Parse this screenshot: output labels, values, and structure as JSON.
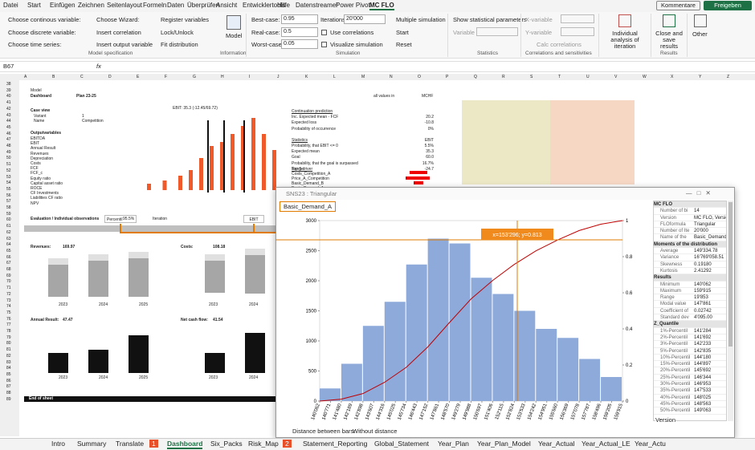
{
  "menu": {
    "tabs": [
      "Datei",
      "Start",
      "Einfügen",
      "Zeichnen",
      "Seitenlayout",
      "Formeln",
      "Daten",
      "Überprüfen",
      "Ansicht",
      "Entwicklertools",
      "Hilfe",
      "Datenstreamer",
      "Power Pivot",
      "MC FLO"
    ],
    "comments": "Kommentare",
    "share": "Freigeben"
  },
  "ribbon": {
    "model_spec": {
      "items": [
        "Choose continous variable:",
        "Choose discrete variable:",
        "Choose time series:",
        "Choose Wizard:",
        "Insert correlation",
        "Insert output variable",
        "Register variables",
        "Lock/Unlock",
        "Fit distribution"
      ],
      "label": "Model specification"
    },
    "information": {
      "button": "Model",
      "label": "Information"
    },
    "simulation": {
      "best_label": "Best-case:",
      "best": "0.95",
      "real_label": "Real-case:",
      "real": "0.5",
      "worst_label": "Worst-case:",
      "worst": "0.05",
      "iterations_label": "Iterations:",
      "iterations": "20'000",
      "use_correlations": "Use correlations",
      "visualize": "Visualize simulation",
      "multiple": "Multiple simulation",
      "start": "Start",
      "reset": "Reset",
      "label": "Simulation"
    },
    "statistics": {
      "show": "Show statistical parameters",
      "variable": "Variable",
      "label": "Statistics"
    },
    "correlations": {
      "x": "X-variable",
      "y": "Y-variable",
      "calc": "Calc correlations",
      "label": "Correlations and sensitivities"
    },
    "individual": "Individual analysis of iteration",
    "close": "Close and save results",
    "other": "Other",
    "results_label": "Results"
  },
  "formula_bar": {
    "cell": "B67",
    "fx": "fx"
  },
  "sheet": {
    "columns": [
      "A",
      "B",
      "C",
      "D",
      "E",
      "F",
      "G",
      "H",
      "I",
      "J",
      "K",
      "L",
      "M",
      "N",
      "O",
      "P",
      "Q",
      "R",
      "S",
      "T",
      "U",
      "V",
      "W",
      "X",
      "Y",
      "Z"
    ],
    "rows": [
      "38",
      "39",
      "40",
      "41",
      "42",
      "43",
      "44",
      "45",
      "46",
      "47",
      "48",
      "49",
      "50",
      "51",
      "52",
      "53",
      "54",
      "55",
      "56",
      "57",
      "58",
      "59",
      "60",
      "61",
      "62",
      "63",
      "64",
      "65",
      "66",
      "67",
      "68",
      "69",
      "70",
      "71",
      "72",
      "73",
      "74",
      "75",
      "76",
      "77",
      "78",
      "79",
      "80",
      "81",
      "82",
      "83",
      "84",
      "85",
      "86",
      "87",
      "88",
      "89"
    ],
    "model": "Model",
    "sheet_name": "Dashboard",
    "plan": "Plan 23-25",
    "units_label": "all values in",
    "units": "MCHF",
    "case_view": "Case view",
    "case_rows": [
      [
        "Variant",
        "1"
      ],
      [
        "Name",
        "Competition"
      ]
    ],
    "outputs_title": "Outputvariables",
    "outputs": [
      "EBITDA",
      "EBIT",
      "Annual Result",
      "Revenues",
      "Depreciation",
      "Costs",
      "FCF",
      "FCF_c",
      "Equity ratio",
      "Capital asset ratio",
      "ROCE",
      "CF Investments",
      "Liabilities CF ratio",
      "NPV"
    ],
    "ebit_header": "EBIT:   35.3   (-12.45/69.72)",
    "prediction": [
      [
        "Continuation prediction",
        ""
      ],
      [
        "Inc. Expected mean - FCF",
        "20.2"
      ],
      [
        "Expected loss",
        "-10.8"
      ],
      [
        "Probability of occurrence",
        "0%"
      ],
      [
        "Statistics",
        "EBIT"
      ],
      [
        "Probability, that EBIT <= 0",
        "5.5%"
      ],
      [
        "Expected mean",
        "35.3"
      ],
      [
        "Goal",
        "60.0"
      ],
      [
        "Probability, that the goal is surpassed",
        "16.7%"
      ],
      [
        "Range",
        "-24.7"
      ]
    ],
    "drivers_title": "Top 5 driver",
    "drivers": [
      "Costs_Competition_A",
      "Price_A_Competition",
      "Basic_Demand_B",
      "Basic_Demand_A"
    ],
    "evaluation": "Evaluation / Individual observations",
    "percentile_label": "Percentil",
    "percentile": "95.5%",
    "iteration_label": "Iteration",
    "output_select": "EBIT",
    "panels": [
      {
        "title": "Revenues:",
        "value": "169.97"
      },
      {
        "title": "Costs:",
        "value": "108.18"
      },
      {
        "title": "Annual Result:",
        "value": "47.47"
      },
      {
        "title": "Net cash flow:",
        "value": "41.54"
      }
    ],
    "years": [
      "2023",
      "2024",
      "2025"
    ],
    "end": "End of sheet"
  },
  "window": {
    "title": "SNS23 : Triangular",
    "variable": "Basic_Demand_A",
    "footer_label": "Distance between bars:",
    "footer_value": "Without distance",
    "tooltip": "x=153'296; y=0.813",
    "sections": [
      {
        "title": "MC FLO",
        "rows": [
          [
            "Number of bi",
            "14"
          ],
          [
            "Version",
            "MC FLO, Versio"
          ],
          [
            "FLOformula",
            "Triangular"
          ],
          [
            "Number of Ite",
            "20'000"
          ],
          [
            "Name of the",
            "Basic_Demand"
          ]
        ]
      },
      {
        "title": "Moments of the distribution",
        "rows": [
          [
            "Average",
            "149'334.78"
          ],
          [
            "Variance",
            "16'769'058.51"
          ],
          [
            "Skewness",
            "0.19180"
          ],
          [
            "Kurtosis",
            "2.41292"
          ]
        ]
      },
      {
        "title": "Results",
        "rows": [
          [
            "Minimum",
            "140'062"
          ],
          [
            "Maximum",
            "159'915"
          ],
          [
            "Range",
            "19'853"
          ],
          [
            "Modal value",
            "147'861"
          ],
          [
            "Coefficient of",
            "0.02742"
          ],
          [
            "Standard dev",
            "4'095.00"
          ]
        ]
      },
      {
        "title": "Z_Quantile",
        "rows": [
          [
            "1%-Percentil",
            "141'284"
          ],
          [
            "2%-Percentil",
            "141'692"
          ],
          [
            "3%-Percentil",
            "142'233"
          ],
          [
            "5%-Percentil",
            "142'835"
          ],
          [
            "10%-Percentil",
            "144'180"
          ],
          [
            "15%-Percentil",
            "144'897"
          ],
          [
            "20%-Percentil",
            "145'692"
          ],
          [
            "25%-Percentil",
            "146'344"
          ],
          [
            "30%-Percentil",
            "146'953"
          ],
          [
            "35%-Percentil",
            "147'533"
          ],
          [
            "40%-Percentil",
            "148'025"
          ],
          [
            "45%-Percentil",
            "148'563"
          ],
          [
            "50%-Percentil",
            "149'063"
          ]
        ]
      }
    ],
    "version": "Version"
  },
  "chart_data": {
    "type": "histogram",
    "bins": [
      140062,
      141480.07,
      142898.14,
      144316.21,
      145734.29,
      147152.36,
      148570.43,
      149988.5,
      151406.57,
      152824.64,
      154242.71,
      155660.79,
      157078.86,
      158496.93,
      159915
    ],
    "series": [
      {
        "color": "#8eaadb",
        "values": [
          210,
          620,
          1250,
          1650,
          2270,
          2700,
          2620,
          2050,
          1780,
          1500,
          1200,
          1050,
          700,
          400
        ]
      },
      {
        "color": "#c00000",
        "axis": "y2",
        "values": [
          0,
          0.0105,
          0.0415,
          0.104,
          0.1865,
          0.3,
          0.435,
          0.566,
          0.6685,
          0.7575,
          0.8325,
          0.8925,
          0.945,
          0.98,
          1
        ]
      }
    ],
    "xlim": [
      140062,
      159915
    ],
    "xticks": [
      {
        "value": 140062,
        "label": "140'062"
      },
      {
        "value": 140771,
        "label": "140'771"
      },
      {
        "value": 141480,
        "label": "141'480"
      },
      {
        "value": 142189,
        "label": "142'189"
      },
      {
        "value": 142898,
        "label": "142'898"
      },
      {
        "value": 143607,
        "label": "143'607"
      },
      {
        "value": 144316,
        "label": "144'316"
      },
      {
        "value": 145025,
        "label": "145'025"
      },
      {
        "value": 145734,
        "label": "145'734"
      },
      {
        "value": 146443,
        "label": "146'443"
      },
      {
        "value": 147152,
        "label": "147'152"
      },
      {
        "value": 147861,
        "label": "147'861"
      },
      {
        "value": 148570,
        "label": "148'570"
      },
      {
        "value": 149279,
        "label": "149'279"
      },
      {
        "value": 149988,
        "label": "149'988"
      },
      {
        "value": 150697,
        "label": "150'697"
      },
      {
        "value": 151406,
        "label": "151'406"
      },
      {
        "value": 152115,
        "label": "152'115"
      },
      {
        "value": 152824,
        "label": "152'824"
      },
      {
        "value": 153533,
        "label": "153'533"
      },
      {
        "value": 154242,
        "label": "154'242"
      },
      {
        "value": 154951,
        "label": "154'951"
      },
      {
        "value": 155660,
        "label": "155'660"
      },
      {
        "value": 156369,
        "label": "156'369"
      },
      {
        "value": 157078,
        "label": "157'078"
      },
      {
        "value": 157787,
        "label": "157'787"
      },
      {
        "value": 158496,
        "label": "158'496"
      },
      {
        "value": 159205,
        "label": "159'205"
      },
      {
        "value": 159915,
        "label": "159'915"
      }
    ],
    "ylim": [
      0,
      3000
    ],
    "yticks": [
      0,
      500,
      1000,
      1500,
      2000,
      2500,
      3000
    ],
    "y2lim": [
      0,
      1
    ],
    "y2ticks": [
      0,
      0.2,
      0.4,
      0.6,
      0.8,
      1
    ],
    "grid": false
  },
  "sheet_tabs": [
    "Intro",
    "Summary",
    "Translate",
    "1",
    "Dashboard",
    "Six_Packs",
    "Risk_Map",
    "2",
    "Statement_Reporting",
    "Global_Statement",
    "Year_Plan",
    "Year_Plan_Model",
    "Year_Actual",
    "Year_Actual_LE",
    "Year_Actu"
  ]
}
